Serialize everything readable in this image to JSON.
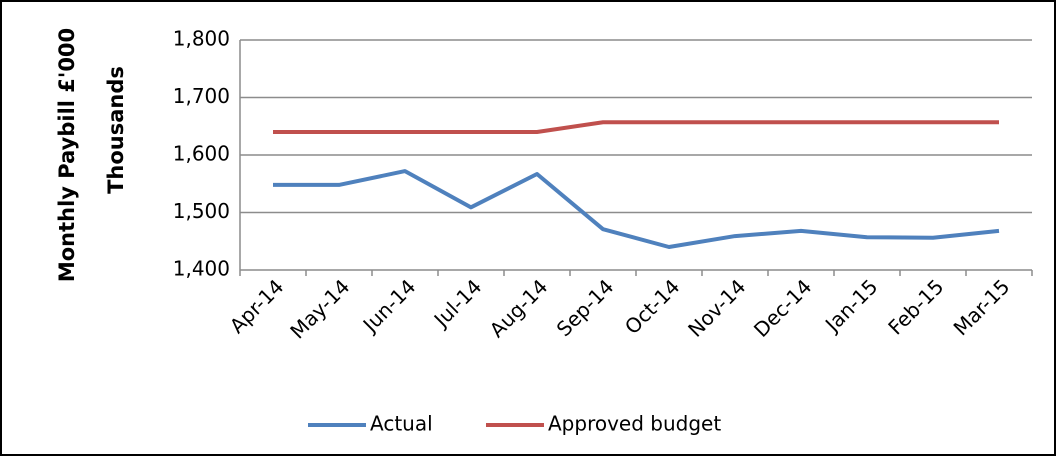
{
  "chart_data": {
    "type": "line",
    "y_axis_label": "Monthly Paybill £'000",
    "y_axis_units": "Thousands",
    "categories": [
      "Apr-14",
      "May-14",
      "Jun-14",
      "Jul-14",
      "Aug-14",
      "Sep-14",
      "Oct-14",
      "Nov-14",
      "Dec-14",
      "Jan-15",
      "Feb-15",
      "Mar-15"
    ],
    "series": [
      {
        "name": "Actual",
        "color": "#4f81bd",
        "values": [
          1548,
          1548,
          1572,
          1509,
          1567,
          1471,
          1440,
          1459,
          1468,
          1457,
          1456,
          1468
        ]
      },
      {
        "name": "Approved budget",
        "color": "#c0504d",
        "values": [
          1640,
          1640,
          1640,
          1640,
          1640,
          1657,
          1657,
          1657,
          1657,
          1657,
          1657,
          1657
        ]
      }
    ],
    "ylim": [
      1400,
      1800
    ],
    "yticks": [
      {
        "value": 1400,
        "label": "1,400"
      },
      {
        "value": 1500,
        "label": "1,500"
      },
      {
        "value": 1600,
        "label": "1,600"
      },
      {
        "value": 1700,
        "label": "1,700"
      },
      {
        "value": 1800,
        "label": "1,800"
      }
    ],
    "grid": true,
    "legend": "bottom"
  }
}
